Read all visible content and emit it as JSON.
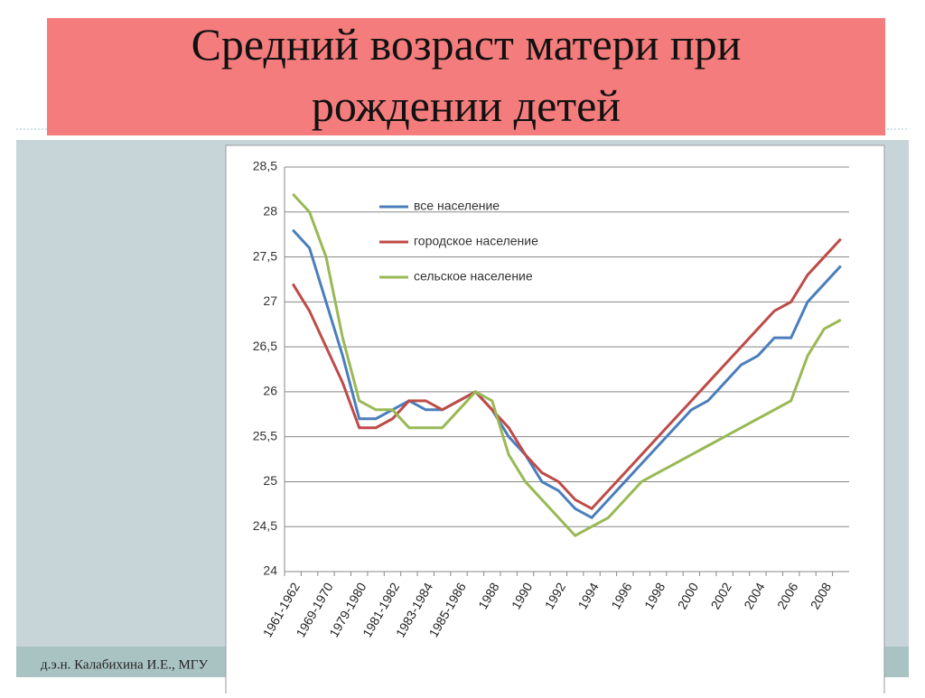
{
  "chart_data": {
    "type": "line",
    "title": "Средний возраст матери при рождении детей",
    "footer": "д.э.н. Калабихина И.Е., МГУ",
    "categories": [
      "1961-1962",
      null,
      "1969-1970",
      null,
      "1979-1980",
      null,
      "1981-1982",
      null,
      "1983-1984",
      null,
      "1985-1986",
      null,
      "1988",
      null,
      "1990",
      null,
      "1992",
      null,
      "1994",
      null,
      "1996",
      null,
      "1998",
      null,
      "2000",
      null,
      "2002",
      null,
      "2004",
      null,
      "2006",
      null,
      "2008",
      null
    ],
    "series": [
      {
        "name": "все население",
        "color": "#4a7ebb",
        "values": [
          27.8,
          27.6,
          27.0,
          26.4,
          25.7,
          25.7,
          25.8,
          25.9,
          25.8,
          25.8,
          25.9,
          26.0,
          25.8,
          25.5,
          25.3,
          25.0,
          24.9,
          24.7,
          24.6,
          24.8,
          25.0,
          25.2,
          25.4,
          25.6,
          25.8,
          25.9,
          26.1,
          26.3,
          26.4,
          26.6,
          26.6,
          27.0,
          27.2,
          27.4
        ]
      },
      {
        "name": "городское население",
        "color": "#be4b48",
        "values": [
          27.2,
          26.9,
          26.5,
          26.1,
          25.6,
          25.6,
          25.7,
          25.9,
          25.9,
          25.8,
          25.9,
          26.0,
          25.8,
          25.6,
          25.3,
          25.1,
          25.0,
          24.8,
          24.7,
          24.9,
          25.1,
          25.3,
          25.5,
          25.7,
          25.9,
          26.1,
          26.3,
          26.5,
          26.7,
          26.9,
          27.0,
          27.3,
          27.5,
          27.7
        ]
      },
      {
        "name": "сельское население",
        "color": "#98b954",
        "values": [
          28.2,
          28.0,
          27.5,
          26.6,
          25.9,
          25.8,
          25.8,
          25.6,
          25.6,
          25.6,
          25.8,
          26.0,
          25.9,
          25.3,
          25.0,
          24.8,
          24.6,
          24.4,
          24.5,
          24.6,
          24.8,
          25.0,
          25.1,
          25.2,
          25.3,
          25.4,
          25.5,
          25.6,
          25.7,
          25.8,
          25.9,
          26.4,
          26.7,
          26.8
        ]
      }
    ],
    "ylim": [
      24,
      28.5
    ],
    "yticks": [
      24,
      {
        "value": 24.5,
        "label": "24,5"
      },
      25,
      {
        "value": 25.5,
        "label": "25,5"
      },
      26,
      {
        "value": 26.5,
        "label": "26,5"
      },
      27,
      {
        "value": 27.5,
        "label": "27,5"
      },
      28,
      {
        "value": 28.5,
        "label": "28,5"
      }
    ],
    "grid": true
  }
}
